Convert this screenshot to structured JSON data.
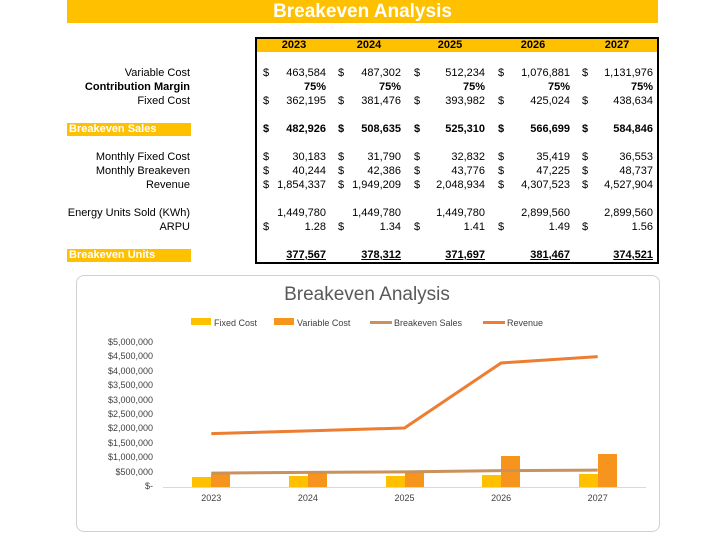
{
  "title": "Breakeven Analysis",
  "years": [
    "2023",
    "2024",
    "2025",
    "2026",
    "2027"
  ],
  "rows": [
    {
      "label": "Variable Cost",
      "style": "normal",
      "dollar": true,
      "values": [
        "463,584",
        "487,302",
        "512,234",
        "1,076,881",
        "1,131,976"
      ]
    },
    {
      "label": "Contribution Margin",
      "style": "bold",
      "dollar": false,
      "values": [
        "75%",
        "75%",
        "75%",
        "75%",
        "75%"
      ]
    },
    {
      "label": "Fixed Cost",
      "style": "normal",
      "dollar": true,
      "values": [
        "362,195",
        "381,476",
        "393,982",
        "425,024",
        "438,634"
      ]
    },
    {
      "label": "Breakeven Sales",
      "style": "highlight",
      "dollar": true,
      "values": [
        "482,926",
        "508,635",
        "525,310",
        "566,699",
        "584,846"
      ]
    },
    {
      "label": "Monthly Fixed Cost",
      "style": "normal",
      "dollar": true,
      "values": [
        "30,183",
        "31,790",
        "32,832",
        "35,419",
        "36,553"
      ]
    },
    {
      "label": "Monthly Breakeven",
      "style": "normal",
      "dollar": true,
      "values": [
        "40,244",
        "42,386",
        "43,776",
        "47,225",
        "48,737"
      ]
    },
    {
      "label": "Revenue",
      "style": "normal",
      "dollar": true,
      "values": [
        "1,854,337",
        "1,949,209",
        "2,048,934",
        "4,307,523",
        "4,527,904"
      ]
    },
    {
      "label": "Energy Units Sold (KWh)",
      "style": "normal",
      "dollar": false,
      "values": [
        "1,449,780",
        "1,449,780",
        "1,449,780",
        "2,899,560",
        "2,899,560"
      ]
    },
    {
      "label": "ARPU",
      "style": "normal",
      "dollar": true,
      "values": [
        "1.28",
        "1.34",
        "1.41",
        "1.49",
        "1.56"
      ]
    },
    {
      "label": "Breakeven Units",
      "style": "highlight-units",
      "dollar": false,
      "values": [
        "377,567",
        "378,312",
        "371,697",
        "381,467",
        "374,521"
      ]
    }
  ],
  "dollar_sign": "$",
  "colors": {
    "accent": "#FFC000",
    "fixed": "#FFC000",
    "variable": "#F7941D",
    "breakeven": "#C9925A",
    "revenue": "#ED7D31"
  },
  "chart_data": {
    "type": "bar+line",
    "title": "Breakeven Analysis",
    "categories": [
      "2023",
      "2024",
      "2025",
      "2026",
      "2027"
    ],
    "series": [
      {
        "name": "Fixed Cost",
        "kind": "bar",
        "values": [
          362195,
          381476,
          393982,
          425024,
          438634
        ]
      },
      {
        "name": "Variable Cost",
        "kind": "bar",
        "values": [
          463584,
          487302,
          512234,
          1076881,
          1131976
        ]
      },
      {
        "name": "Breakeven Sales",
        "kind": "line",
        "values": [
          482926,
          508635,
          525310,
          566699,
          584846
        ]
      },
      {
        "name": "Revenue",
        "kind": "line",
        "values": [
          1854337,
          1949209,
          2048934,
          4307523,
          4527904
        ]
      }
    ],
    "yticks": [
      "$-",
      "$500,000",
      "$1,000,000",
      "$1,500,000",
      "$2,000,000",
      "$2,500,000",
      "$3,000,000",
      "$3,500,000",
      "$4,000,000",
      "$4,500,000",
      "$5,000,000"
    ],
    "ylim": [
      0,
      5000000
    ],
    "legend": "top",
    "grid": false
  }
}
